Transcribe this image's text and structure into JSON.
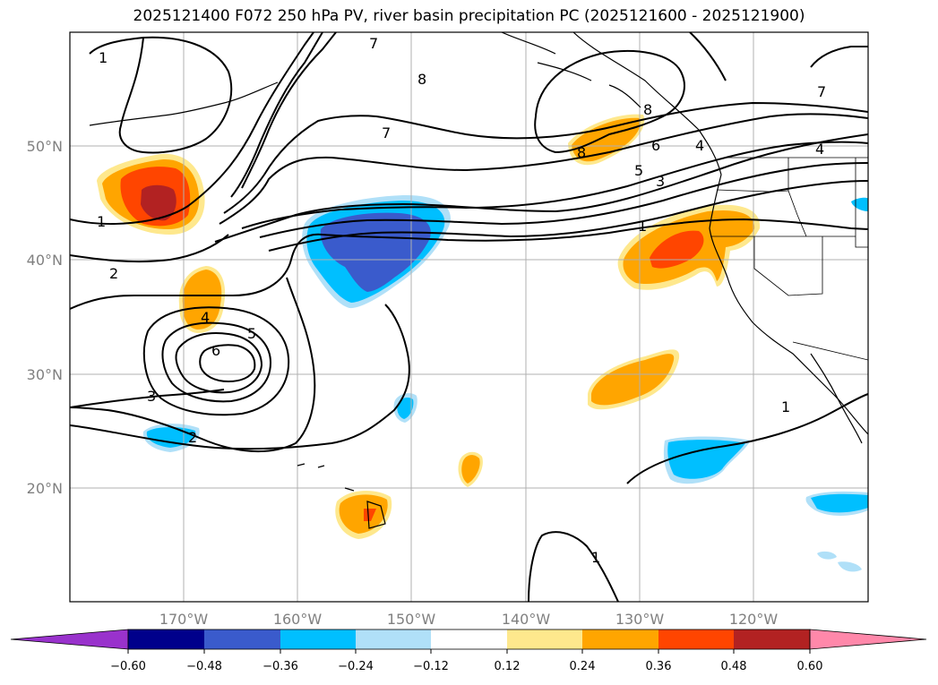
{
  "title": "2025121400 F072 250 hPa PV, river basin precipitation PC (2025121600 - 2025121900)",
  "map": {
    "lon_range": [
      -180,
      -110
    ],
    "lat_range": [
      10,
      60
    ],
    "lat_ticks": [
      {
        "lat": 50,
        "label": "50°N"
      },
      {
        "lat": 40,
        "label": "40°N"
      },
      {
        "lat": 30,
        "label": "30°N"
      },
      {
        "lat": 20,
        "label": "20°N"
      }
    ],
    "lon_ticks": [
      {
        "lon": -170,
        "label": "170°W"
      },
      {
        "lon": -160,
        "label": "160°W"
      },
      {
        "lon": -150,
        "label": "150°W"
      },
      {
        "lon": -140,
        "label": "140°W"
      },
      {
        "lon": -130,
        "label": "130°W"
      },
      {
        "lon": -120,
        "label": "120°W"
      }
    ],
    "contour_labels": [
      "1",
      "1",
      "2",
      "4",
      "5",
      "6",
      "3",
      "2",
      "7",
      "8",
      "7",
      "8",
      "6",
      "5",
      "3",
      "1",
      "4",
      "7",
      "1",
      "1",
      "4",
      "8"
    ]
  },
  "colorbar": {
    "ticks": [
      "−0.60",
      "−0.48",
      "−0.36",
      "−0.24",
      "−0.12",
      "0.12",
      "0.24",
      "0.36",
      "0.48",
      "0.60"
    ],
    "colors": {
      "neg_extend": "#9932cc",
      "neg_060": "#00008b",
      "neg_048": "#3a5bcc",
      "neg_036": "#00bfff",
      "neg_024": "#b0e0f8",
      "neutral": "#ffffff",
      "pos_012": "#fee88d",
      "pos_024": "#ffa500",
      "pos_036": "#ff4500",
      "pos_048": "#b22222",
      "pos_extend": "#ff88aa"
    }
  }
}
